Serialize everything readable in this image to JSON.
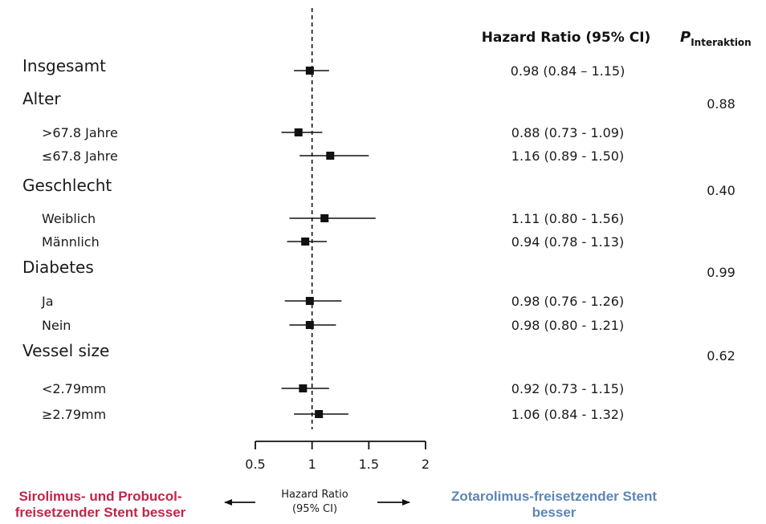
{
  "chart_data": {
    "type": "forest",
    "header_hr": "Hazard Ratio (95% CI)",
    "header_p_main": "P",
    "header_p_sub": "Interaktion",
    "x_axis": {
      "ticks": [
        0.5,
        1,
        1.5,
        2
      ],
      "tick_labels": [
        "0.5",
        "1",
        "1.5",
        "2"
      ],
      "range": [
        0.5,
        2
      ],
      "reference_line": 1,
      "title_line1": "Hazard Ratio",
      "title_line2": "(95% CI)"
    },
    "left_label": {
      "line1": "Sirolimus- und Probucol-",
      "line2": "freisetzender Stent besser",
      "color": "#c0264a"
    },
    "right_label": {
      "line1": "Zotarolimus-freisetzender Stent",
      "line2": "besser",
      "color": "#5b86b7"
    },
    "rows": [
      {
        "label": "Insgesamt",
        "level": "group",
        "hr": 0.98,
        "lo": 0.84,
        "hi": 1.15,
        "hr_text": "0.98 (0.84 – 1.15)",
        "p": ""
      },
      {
        "label": "Alter",
        "level": "group",
        "hr": null,
        "lo": null,
        "hi": null,
        "hr_text": "",
        "p": "0.88"
      },
      {
        "label": ">67.8 Jahre",
        "level": "sub",
        "hr": 0.88,
        "lo": 0.73,
        "hi": 1.09,
        "hr_text": "0.88 (0.73 - 1.09)",
        "p": ""
      },
      {
        "label": "≤67.8 Jahre",
        "level": "sub",
        "hr": 1.16,
        "lo": 0.89,
        "hi": 1.5,
        "hr_text": "1.16 (0.89 - 1.50)",
        "p": ""
      },
      {
        "label": "Geschlecht",
        "level": "group",
        "hr": null,
        "lo": null,
        "hi": null,
        "hr_text": "",
        "p": "0.40"
      },
      {
        "label": "Weiblich",
        "level": "sub",
        "hr": 1.11,
        "lo": 0.8,
        "hi": 1.56,
        "hr_text": "1.11 (0.80 - 1.56)",
        "p": ""
      },
      {
        "label": "Männlich",
        "level": "sub",
        "hr": 0.94,
        "lo": 0.78,
        "hi": 1.13,
        "hr_text": "0.94 (0.78 - 1.13)",
        "p": ""
      },
      {
        "label": "Diabetes",
        "level": "group",
        "hr": null,
        "lo": null,
        "hi": null,
        "hr_text": "",
        "p": "0.99"
      },
      {
        "label": "Ja",
        "level": "sub",
        "hr": 0.98,
        "lo": 0.76,
        "hi": 1.26,
        "hr_text": "0.98 (0.76 - 1.26)",
        "p": ""
      },
      {
        "label": "Nein",
        "level": "sub",
        "hr": 0.98,
        "lo": 0.8,
        "hi": 1.21,
        "hr_text": "0.98 (0.80 - 1.21)",
        "p": ""
      },
      {
        "label": "Vessel size",
        "level": "group",
        "hr": null,
        "lo": null,
        "hi": null,
        "hr_text": "",
        "p": "0.62"
      },
      {
        "label": "<2.79mm",
        "level": "sub",
        "hr": 0.92,
        "lo": 0.73,
        "hi": 1.15,
        "hr_text": "0.92 (0.73 - 1.15)",
        "p": ""
      },
      {
        "label": "≥2.79mm",
        "level": "sub",
        "hr": 1.06,
        "lo": 0.84,
        "hi": 1.32,
        "hr_text": "1.06 (0.84 - 1.32)",
        "p": ""
      }
    ]
  }
}
